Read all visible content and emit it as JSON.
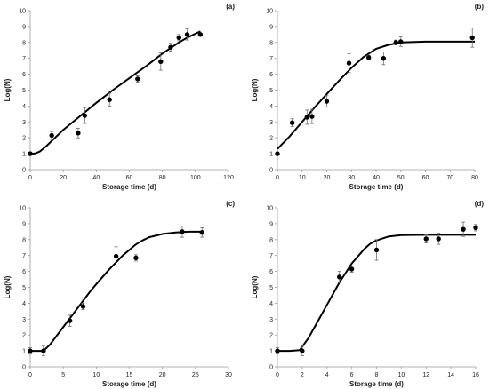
{
  "chart_data": [
    {
      "type": "scatter",
      "panel_label": "(a)",
      "xlabel": "Storage time (d)",
      "ylabel": "Log(N)",
      "xlim": [
        0,
        120
      ],
      "ylim": [
        0,
        10
      ],
      "xticks": [
        0,
        20,
        40,
        60,
        80,
        100,
        120
      ],
      "yticks": [
        0,
        1,
        2,
        3,
        4,
        5,
        6,
        7,
        8,
        9,
        10
      ],
      "grid": false,
      "series": [
        {
          "kind": "observed",
          "x": [
            0,
            13,
            29,
            33,
            48,
            65,
            79,
            85,
            90,
            95,
            103
          ],
          "y": [
            1.0,
            2.15,
            2.3,
            3.4,
            4.4,
            5.7,
            6.8,
            7.7,
            8.3,
            8.5,
            8.5
          ],
          "err": [
            0.1,
            0.25,
            0.3,
            0.5,
            0.4,
            0.2,
            0.55,
            0.25,
            0.2,
            0.35,
            0.1
          ]
        },
        {
          "kind": "fitted",
          "x": [
            0,
            3,
            6,
            10,
            15,
            20,
            30,
            40,
            50,
            60,
            70,
            80,
            90,
            95,
            100,
            103
          ],
          "y": [
            1.0,
            1.02,
            1.15,
            1.5,
            2.0,
            2.5,
            3.35,
            4.2,
            5.0,
            5.75,
            6.5,
            7.3,
            8.0,
            8.3,
            8.55,
            8.7
          ]
        }
      ]
    },
    {
      "type": "scatter",
      "panel_label": "(b)",
      "xlabel": "Storage time (d)",
      "ylabel": "Log(N)",
      "xlim": [
        0,
        80
      ],
      "ylim": [
        0,
        10
      ],
      "xticks": [
        0,
        10,
        20,
        30,
        40,
        50,
        60,
        70,
        80
      ],
      "yticks": [
        0,
        1,
        2,
        3,
        4,
        5,
        6,
        7,
        8,
        9,
        10
      ],
      "grid": false,
      "series": [
        {
          "kind": "observed",
          "x": [
            0,
            6,
            12,
            14,
            20,
            29,
            37,
            43,
            48,
            50,
            79
          ],
          "y": [
            1.0,
            2.95,
            3.3,
            3.35,
            4.3,
            6.7,
            7.05,
            7.0,
            8.0,
            8.05,
            8.3
          ],
          "err": [
            0.1,
            0.25,
            0.45,
            0.45,
            0.35,
            0.6,
            0.15,
            0.4,
            0.15,
            0.3,
            0.6
          ]
        },
        {
          "kind": "fitted",
          "x": [
            0,
            5,
            10,
            15,
            20,
            25,
            30,
            35,
            40,
            45,
            50,
            60,
            70,
            80
          ],
          "y": [
            1.3,
            2.1,
            3.0,
            3.9,
            4.75,
            5.6,
            6.4,
            7.1,
            7.6,
            7.85,
            8.0,
            8.05,
            8.05,
            8.05
          ]
        }
      ]
    },
    {
      "type": "scatter",
      "panel_label": "(c)",
      "xlabel": "Storage time (d)",
      "ylabel": "Log(N)",
      "xlim": [
        0,
        30
      ],
      "ylim": [
        0,
        10
      ],
      "xticks": [
        0,
        5,
        10,
        15,
        20,
        25,
        30
      ],
      "yticks": [
        0,
        1,
        2,
        3,
        4,
        5,
        6,
        7,
        8,
        9,
        10
      ],
      "grid": false,
      "series": [
        {
          "kind": "observed",
          "x": [
            0,
            2,
            6,
            8,
            13,
            16,
            23,
            26
          ],
          "y": [
            1.0,
            1.0,
            2.9,
            3.8,
            6.95,
            6.85,
            8.5,
            8.45
          ],
          "err": [
            0.2,
            0.3,
            0.35,
            0.2,
            0.6,
            0.2,
            0.35,
            0.3
          ]
        },
        {
          "kind": "fitted",
          "x": [
            0,
            1,
            2,
            3,
            4,
            5,
            6,
            7,
            8,
            9,
            10,
            12,
            14,
            16,
            17,
            18,
            20,
            22,
            24,
            26
          ],
          "y": [
            1.0,
            1.0,
            1.0,
            1.4,
            1.95,
            2.5,
            3.05,
            3.6,
            4.15,
            4.7,
            5.2,
            6.15,
            7.0,
            7.7,
            7.95,
            8.15,
            8.35,
            8.45,
            8.5,
            8.5
          ]
        }
      ]
    },
    {
      "type": "scatter",
      "panel_label": "(d)",
      "xlabel": "Storage time (d)",
      "ylabel": "Log(N)",
      "xlim": [
        0,
        16
      ],
      "ylim": [
        0,
        10
      ],
      "xticks": [
        0,
        2,
        4,
        6,
        8,
        10,
        12,
        14,
        16
      ],
      "yticks": [
        0,
        1,
        2,
        3,
        4,
        5,
        6,
        7,
        8,
        9,
        10
      ],
      "grid": false,
      "series": [
        {
          "kind": "observed",
          "x": [
            0,
            2,
            5,
            6,
            8,
            12,
            13,
            15,
            16
          ],
          "y": [
            1.0,
            1.0,
            5.65,
            6.15,
            7.35,
            8.05,
            8.05,
            8.65,
            8.75
          ],
          "err": [
            0.2,
            0.3,
            0.35,
            0.2,
            0.65,
            0.25,
            0.35,
            0.45,
            0.2
          ]
        },
        {
          "kind": "fitted",
          "x": [
            0,
            1,
            1.8,
            2.5,
            3,
            4,
            5,
            6,
            7,
            7.5,
            8,
            9,
            10,
            12,
            14,
            16
          ],
          "y": [
            1.0,
            1.0,
            1.05,
            1.8,
            2.5,
            3.9,
            5.3,
            6.5,
            7.4,
            7.75,
            7.95,
            8.2,
            8.28,
            8.3,
            8.3,
            8.3
          ]
        }
      ]
    }
  ]
}
